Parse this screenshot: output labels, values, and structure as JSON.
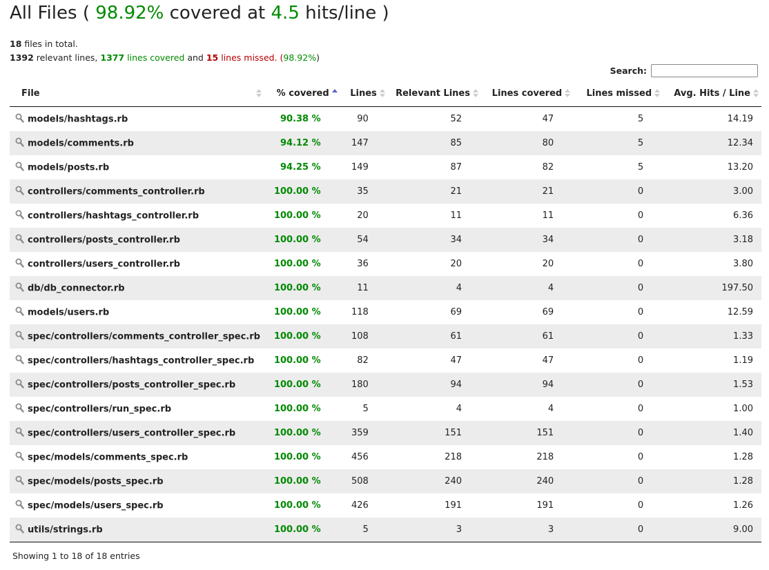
{
  "header": {
    "title_prefix": "All Files (",
    "coverage_percent": "98.92%",
    "title_mid": "covered at",
    "hits": "4.5",
    "title_suffix": "hits/line )"
  },
  "summary": {
    "total_files": "18",
    "files_text": "files in total.",
    "relevant_lines": "1392",
    "relevant_text": "relevant lines,",
    "covered_count": "1377",
    "covered_text": "lines covered",
    "and_text": "and",
    "missed_count": "15",
    "missed_text": "lines missed.",
    "paren_open": "(",
    "percent": "98.92%",
    "paren_close": ")"
  },
  "search": {
    "label": "Search:",
    "value": ""
  },
  "columns": [
    "File",
    "% covered",
    "Lines",
    "Relevant Lines",
    "Lines covered",
    "Lines missed",
    "Avg. Hits / Line"
  ],
  "rows": [
    {
      "file": "models/hashtags.rb",
      "covered": "90.38 %",
      "lines": "90",
      "relevant": "52",
      "lines_covered": "47",
      "missed": "5",
      "avg": "14.19"
    },
    {
      "file": "models/comments.rb",
      "covered": "94.12 %",
      "lines": "147",
      "relevant": "85",
      "lines_covered": "80",
      "missed": "5",
      "avg": "12.34"
    },
    {
      "file": "models/posts.rb",
      "covered": "94.25 %",
      "lines": "149",
      "relevant": "87",
      "lines_covered": "82",
      "missed": "5",
      "avg": "13.20"
    },
    {
      "file": "controllers/comments_controller.rb",
      "covered": "100.00 %",
      "lines": "35",
      "relevant": "21",
      "lines_covered": "21",
      "missed": "0",
      "avg": "3.00"
    },
    {
      "file": "controllers/hashtags_controller.rb",
      "covered": "100.00 %",
      "lines": "20",
      "relevant": "11",
      "lines_covered": "11",
      "missed": "0",
      "avg": "6.36"
    },
    {
      "file": "controllers/posts_controller.rb",
      "covered": "100.00 %",
      "lines": "54",
      "relevant": "34",
      "lines_covered": "34",
      "missed": "0",
      "avg": "3.18"
    },
    {
      "file": "controllers/users_controller.rb",
      "covered": "100.00 %",
      "lines": "36",
      "relevant": "20",
      "lines_covered": "20",
      "missed": "0",
      "avg": "3.80"
    },
    {
      "file": "db/db_connector.rb",
      "covered": "100.00 %",
      "lines": "11",
      "relevant": "4",
      "lines_covered": "4",
      "missed": "0",
      "avg": "197.50"
    },
    {
      "file": "models/users.rb",
      "covered": "100.00 %",
      "lines": "118",
      "relevant": "69",
      "lines_covered": "69",
      "missed": "0",
      "avg": "12.59"
    },
    {
      "file": "spec/controllers/comments_controller_spec.rb",
      "covered": "100.00 %",
      "lines": "108",
      "relevant": "61",
      "lines_covered": "61",
      "missed": "0",
      "avg": "1.33"
    },
    {
      "file": "spec/controllers/hashtags_controller_spec.rb",
      "covered": "100.00 %",
      "lines": "82",
      "relevant": "47",
      "lines_covered": "47",
      "missed": "0",
      "avg": "1.19"
    },
    {
      "file": "spec/controllers/posts_controller_spec.rb",
      "covered": "100.00 %",
      "lines": "180",
      "relevant": "94",
      "lines_covered": "94",
      "missed": "0",
      "avg": "1.53"
    },
    {
      "file": "spec/controllers/run_spec.rb",
      "covered": "100.00 %",
      "lines": "5",
      "relevant": "4",
      "lines_covered": "4",
      "missed": "0",
      "avg": "1.00"
    },
    {
      "file": "spec/controllers/users_controller_spec.rb",
      "covered": "100.00 %",
      "lines": "359",
      "relevant": "151",
      "lines_covered": "151",
      "missed": "0",
      "avg": "1.40"
    },
    {
      "file": "spec/models/comments_spec.rb",
      "covered": "100.00 %",
      "lines": "456",
      "relevant": "218",
      "lines_covered": "218",
      "missed": "0",
      "avg": "1.28"
    },
    {
      "file": "spec/models/posts_spec.rb",
      "covered": "100.00 %",
      "lines": "508",
      "relevant": "240",
      "lines_covered": "240",
      "missed": "0",
      "avg": "1.28"
    },
    {
      "file": "spec/models/users_spec.rb",
      "covered": "100.00 %",
      "lines": "426",
      "relevant": "191",
      "lines_covered": "191",
      "missed": "0",
      "avg": "1.26"
    },
    {
      "file": "utils/strings.rb",
      "covered": "100.00 %",
      "lines": "5",
      "relevant": "3",
      "lines_covered": "3",
      "missed": "0",
      "avg": "9.00"
    }
  ],
  "footer": {
    "info": "Showing 1 to 18 of 18 entries"
  },
  "colors": {
    "green": "#008a00",
    "red": "#b30000",
    "sort_active": "#5a5fc5",
    "row_stripe": "#ececec"
  },
  "sorted_column": "% covered",
  "row_icon": "magnifier-icon"
}
